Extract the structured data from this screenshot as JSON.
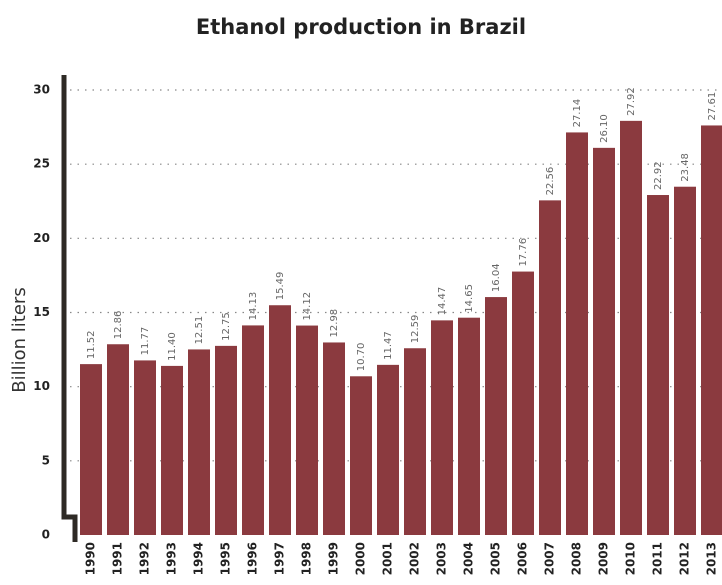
{
  "chart_data": {
    "type": "bar",
    "title": "Ethanol production in Brazil",
    "y_label": "Billion liters",
    "categories": [
      "1990",
      "1991",
      "1992",
      "1993",
      "1994",
      "1995",
      "1996",
      "1997",
      "1998",
      "1999",
      "2000",
      "2001",
      "2002",
      "2003",
      "2004",
      "2005",
      "2006",
      "2007",
      "2008",
      "2009",
      "2010",
      "2011",
      "2012",
      "2013"
    ],
    "values": [
      11.52,
      12.86,
      11.77,
      11.4,
      12.51,
      12.75,
      14.13,
      15.49,
      14.12,
      12.98,
      10.7,
      11.47,
      12.59,
      14.47,
      14.65,
      16.04,
      17.76,
      22.56,
      27.14,
      26.1,
      27.92,
      22.92,
      23.48,
      27.61
    ],
    "value_labels": [
      "11.52",
      "12.86",
      "11.77",
      "11.40",
      "12.51",
      "12.75",
      "14.13",
      "15.49",
      "14.12",
      "12.98",
      "10.70",
      "11.47",
      "12.59",
      "14.47",
      "14.65",
      "16.04",
      "17.76",
      "22.56",
      "27.14",
      "26.10",
      "27.92",
      "22.92",
      "23.48",
      "27.61"
    ],
    "color": "#8b3a3f",
    "ylim": [
      0,
      30
    ],
    "yticks": [
      0,
      5,
      10,
      15,
      20,
      25,
      30
    ],
    "grid": true
  }
}
